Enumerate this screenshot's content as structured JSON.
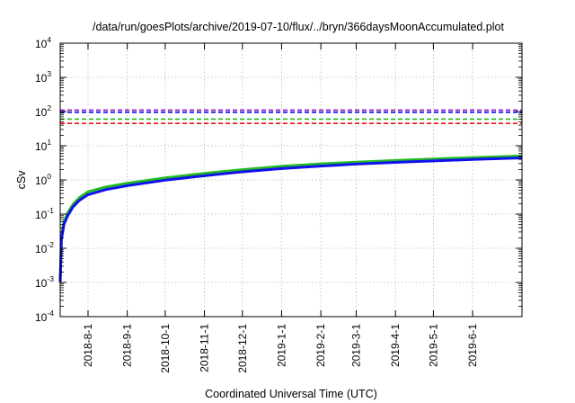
{
  "chart_data": {
    "type": "line",
    "title": "/data/run/goesPlots/archive/2019-07-10/flux/../bryn/366daysMoonAccumulated.plot",
    "xlabel": "Coordinated Universal Time (UTC)",
    "ylabel": "cSv",
    "y_scale": "log",
    "ylim_exponents": [
      -4,
      4
    ],
    "y_tick_base": "10",
    "y_tick_exponents": [
      "-4",
      "-3",
      "-2",
      "-1",
      "0",
      "1",
      "2",
      "3",
      "4"
    ],
    "xlim": [
      "2018-07-10",
      "2019-07-10"
    ],
    "x_ticks": [
      "2018-8-1",
      "2018-9-1",
      "2018-10-1",
      "2018-11-1",
      "2018-12-1",
      "2019-1-1",
      "2019-2-1",
      "2019-3-1",
      "2019-4-1",
      "2019-5-1",
      "2019-6-1"
    ],
    "grid": true,
    "legend": "none",
    "colors": {
      "green": "#22bb22",
      "blue": "#1111ee",
      "red": "#ee1111",
      "purple": "#8811cc"
    },
    "thresholds": [
      {
        "value": 110,
        "color": "purple",
        "style": "dashed"
      },
      {
        "value": 95,
        "color": "blue",
        "style": "dashed"
      },
      {
        "value": 60,
        "color": "green",
        "style": "dashed"
      },
      {
        "value": 45,
        "color": "red",
        "style": "dashed"
      }
    ],
    "series": [
      {
        "color": "green",
        "x": [
          "2018-07-10",
          "2018-07-11",
          "2018-07-13",
          "2018-07-16",
          "2018-07-20",
          "2018-07-25",
          "2018-08-01",
          "2018-08-15",
          "2018-09-01",
          "2018-10-01",
          "2018-11-01",
          "2018-12-01",
          "2019-01-01",
          "2019-02-01",
          "2019-03-01",
          "2019-04-01",
          "2019-05-01",
          "2019-06-01",
          "2019-07-10"
        ],
        "y": [
          0.0012,
          0.022,
          0.06,
          0.11,
          0.19,
          0.3,
          0.45,
          0.62,
          0.8,
          1.15,
          1.55,
          2.0,
          2.5,
          2.95,
          3.3,
          3.7,
          4.1,
          4.5,
          5.0
        ]
      },
      {
        "color": "blue",
        "x": [
          "2018-07-10",
          "2018-07-11",
          "2018-07-13",
          "2018-07-16",
          "2018-07-20",
          "2018-07-25",
          "2018-08-01",
          "2018-08-15",
          "2018-09-01",
          "2018-10-01",
          "2018-11-01",
          "2018-12-01",
          "2019-01-01",
          "2019-02-01",
          "2019-03-01",
          "2019-04-01",
          "2019-05-01",
          "2019-06-01",
          "2019-07-10"
        ],
        "y": [
          0.001,
          0.018,
          0.05,
          0.09,
          0.16,
          0.25,
          0.37,
          0.52,
          0.68,
          0.98,
          1.32,
          1.72,
          2.15,
          2.55,
          2.9,
          3.25,
          3.6,
          3.95,
          4.4
        ]
      }
    ]
  }
}
